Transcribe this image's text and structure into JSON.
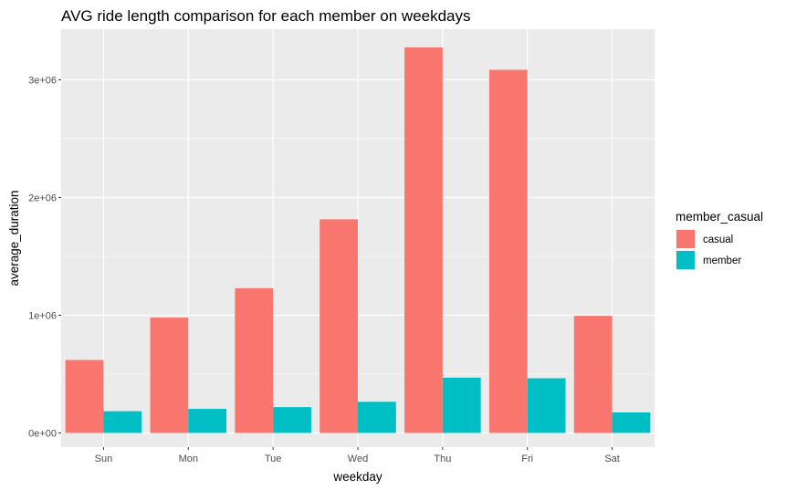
{
  "chart_data": {
    "type": "bar",
    "title": "AVG ride length comparison for each member on weekdays",
    "xlabel": "weekday",
    "ylabel": "average_duration",
    "categories": [
      "Sun",
      "Mon",
      "Tue",
      "Wed",
      "Thu",
      "Fri",
      "Sat"
    ],
    "series": [
      {
        "name": "casual",
        "values": [
          620000,
          980000,
          1230000,
          1815000,
          3275000,
          3085000,
          995000
        ],
        "color": "#F8766D"
      },
      {
        "name": "member",
        "values": [
          185000,
          205000,
          220000,
          265000,
          470000,
          465000,
          175000
        ],
        "color": "#00BFC4"
      }
    ],
    "ylim": [
      -120000,
      3430000
    ],
    "yticks": [
      0,
      1000000,
      2000000,
      3000000
    ],
    "ytick_labels": [
      "0e+00",
      "1e+06",
      "2e+06",
      "3e+06"
    ],
    "legend": {
      "title": "member_casual",
      "position": "right"
    },
    "grid": true,
    "panel_color": "#EBEBEB",
    "grid_color": "#FFFFFF"
  }
}
